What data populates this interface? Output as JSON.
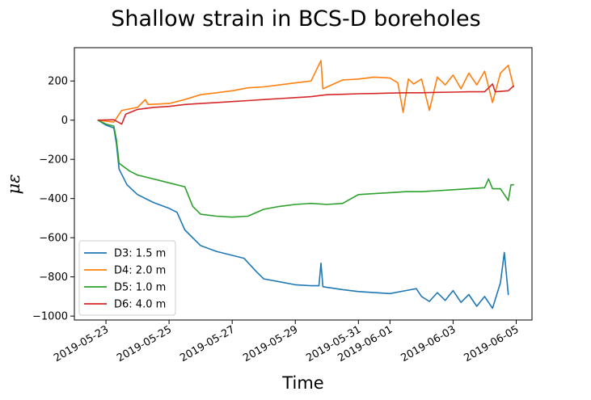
{
  "chart_data": {
    "type": "line",
    "title": "Shallow strain in BCS-D boreholes",
    "xlabel": "Time",
    "ylabel": "με",
    "x_range": [
      "2019-05-22",
      "2019-06-05 12:00"
    ],
    "ylim": [
      -1020,
      370
    ],
    "yticks": [
      200,
      0,
      -200,
      -400,
      -600,
      -800,
      -1000
    ],
    "ytick_labels": [
      "200",
      "0",
      "−200",
      "−400",
      "−600",
      "−800",
      "−1000"
    ],
    "xticks": [
      "2019-05-23",
      "2019-05-25",
      "2019-05-27",
      "2019-05-29",
      "2019-05-31",
      "2019-06-01",
      "2019-06-03",
      "2019-06-05"
    ],
    "grid": false,
    "legend_position": "lower-left",
    "series": [
      {
        "name": "D3: 1.5 m",
        "color": "#1f77b4",
        "points": [
          [
            "2019-05-22 18:00",
            0
          ],
          [
            "2019-05-23 00:00",
            -25
          ],
          [
            "2019-05-23 06:00",
            -40
          ],
          [
            "2019-05-23 08:00",
            -120
          ],
          [
            "2019-05-23 10:00",
            -250
          ],
          [
            "2019-05-23 16:00",
            -330
          ],
          [
            "2019-05-24 00:00",
            -380
          ],
          [
            "2019-05-24 12:00",
            -420
          ],
          [
            "2019-05-25 00:00",
            -450
          ],
          [
            "2019-05-25 06:00",
            -470
          ],
          [
            "2019-05-25 12:00",
            -560
          ],
          [
            "2019-05-26 00:00",
            -640
          ],
          [
            "2019-05-26 12:00",
            -670
          ],
          [
            "2019-05-27 00:00",
            -690
          ],
          [
            "2019-05-27 09:00",
            -705
          ],
          [
            "2019-05-27 18:00",
            -770
          ],
          [
            "2019-05-28 00:00",
            -810
          ],
          [
            "2019-05-28 12:00",
            -825
          ],
          [
            "2019-05-29 00:00",
            -840
          ],
          [
            "2019-05-29 12:00",
            -845
          ],
          [
            "2019-05-29 18:00",
            -845
          ],
          [
            "2019-05-29 19:30",
            -730
          ],
          [
            "2019-05-29 21:00",
            -850
          ],
          [
            "2019-05-30 12:00",
            -865
          ],
          [
            "2019-05-31 00:00",
            -875
          ],
          [
            "2019-05-31 12:00",
            -880
          ],
          [
            "2019-06-01 00:00",
            -885
          ],
          [
            "2019-06-01 12:00",
            -870
          ],
          [
            "2019-06-01 20:00",
            -860
          ],
          [
            "2019-06-02 00:00",
            -900
          ],
          [
            "2019-06-02 06:00",
            -925
          ],
          [
            "2019-06-02 12:00",
            -880
          ],
          [
            "2019-06-02 18:00",
            -920
          ],
          [
            "2019-06-03 00:00",
            -870
          ],
          [
            "2019-06-03 06:00",
            -930
          ],
          [
            "2019-06-03 12:00",
            -890
          ],
          [
            "2019-06-03 18:00",
            -950
          ],
          [
            "2019-06-04 00:00",
            -900
          ],
          [
            "2019-06-04 06:00",
            -960
          ],
          [
            "2019-06-04 12:00",
            -830
          ],
          [
            "2019-06-04 15:00",
            -675
          ],
          [
            "2019-06-04 18:00",
            -890
          ]
        ]
      },
      {
        "name": "D4: 2.0 m",
        "color": "#ff7f0e",
        "points": [
          [
            "2019-05-22 18:00",
            0
          ],
          [
            "2019-05-23 00:00",
            -5
          ],
          [
            "2019-05-23 06:00",
            -10
          ],
          [
            "2019-05-23 12:00",
            50
          ],
          [
            "2019-05-24 00:00",
            65
          ],
          [
            "2019-05-24 06:00",
            105
          ],
          [
            "2019-05-24 08:00",
            80
          ],
          [
            "2019-05-25 00:00",
            85
          ],
          [
            "2019-05-25 12:00",
            105
          ],
          [
            "2019-05-26 00:00",
            130
          ],
          [
            "2019-05-26 12:00",
            140
          ],
          [
            "2019-05-27 00:00",
            150
          ],
          [
            "2019-05-27 12:00",
            165
          ],
          [
            "2019-05-28 00:00",
            170
          ],
          [
            "2019-05-28 12:00",
            180
          ],
          [
            "2019-05-29 00:00",
            190
          ],
          [
            "2019-05-29 12:00",
            200
          ],
          [
            "2019-05-29 19:30",
            305
          ],
          [
            "2019-05-29 21:00",
            160
          ],
          [
            "2019-05-30 12:00",
            205
          ],
          [
            "2019-05-31 00:00",
            210
          ],
          [
            "2019-05-31 12:00",
            220
          ],
          [
            "2019-06-01 00:00",
            215
          ],
          [
            "2019-06-01 06:00",
            190
          ],
          [
            "2019-06-01 10:00",
            40
          ],
          [
            "2019-06-01 14:00",
            210
          ],
          [
            "2019-06-01 18:00",
            185
          ],
          [
            "2019-06-02 00:00",
            210
          ],
          [
            "2019-06-02 06:00",
            50
          ],
          [
            "2019-06-02 12:00",
            220
          ],
          [
            "2019-06-02 18:00",
            180
          ],
          [
            "2019-06-03 00:00",
            230
          ],
          [
            "2019-06-03 06:00",
            160
          ],
          [
            "2019-06-03 12:00",
            240
          ],
          [
            "2019-06-03 18:00",
            180
          ],
          [
            "2019-06-04 00:00",
            250
          ],
          [
            "2019-06-04 06:00",
            90
          ],
          [
            "2019-06-04 12:00",
            240
          ],
          [
            "2019-06-04 18:00",
            280
          ],
          [
            "2019-06-04 22:00",
            170
          ]
        ]
      },
      {
        "name": "D5: 1.0 m",
        "color": "#2ca02c",
        "points": [
          [
            "2019-05-22 18:00",
            0
          ],
          [
            "2019-05-23 00:00",
            -20
          ],
          [
            "2019-05-23 06:00",
            -30
          ],
          [
            "2019-05-23 08:00",
            -100
          ],
          [
            "2019-05-23 10:00",
            -220
          ],
          [
            "2019-05-23 18:00",
            -260
          ],
          [
            "2019-05-24 00:00",
            -280
          ],
          [
            "2019-05-24 12:00",
            -300
          ],
          [
            "2019-05-25 00:00",
            -320
          ],
          [
            "2019-05-25 12:00",
            -340
          ],
          [
            "2019-05-25 18:00",
            -440
          ],
          [
            "2019-05-26 00:00",
            -480
          ],
          [
            "2019-05-26 12:00",
            -490
          ],
          [
            "2019-05-27 00:00",
            -495
          ],
          [
            "2019-05-27 12:00",
            -490
          ],
          [
            "2019-05-28 00:00",
            -455
          ],
          [
            "2019-05-28 12:00",
            -440
          ],
          [
            "2019-05-29 00:00",
            -430
          ],
          [
            "2019-05-29 12:00",
            -425
          ],
          [
            "2019-05-30 00:00",
            -430
          ],
          [
            "2019-05-30 12:00",
            -425
          ],
          [
            "2019-05-31 00:00",
            -380
          ],
          [
            "2019-05-31 12:00",
            -375
          ],
          [
            "2019-06-01 00:00",
            -370
          ],
          [
            "2019-06-01 12:00",
            -365
          ],
          [
            "2019-06-02 00:00",
            -365
          ],
          [
            "2019-06-02 12:00",
            -360
          ],
          [
            "2019-06-03 00:00",
            -355
          ],
          [
            "2019-06-03 12:00",
            -350
          ],
          [
            "2019-06-04 00:00",
            -345
          ],
          [
            "2019-06-04 03:00",
            -300
          ],
          [
            "2019-06-04 06:00",
            -350
          ],
          [
            "2019-06-04 12:00",
            -350
          ],
          [
            "2019-06-04 18:00",
            -410
          ],
          [
            "2019-06-04 20:00",
            -330
          ],
          [
            "2019-06-04 22:00",
            -330
          ]
        ]
      },
      {
        "name": "D6: 4.0 m",
        "color": "#d62728",
        "points": [
          [
            "2019-05-22 18:00",
            0
          ],
          [
            "2019-05-23 06:00",
            2
          ],
          [
            "2019-05-23 12:00",
            -20
          ],
          [
            "2019-05-23 15:00",
            30
          ],
          [
            "2019-05-24 00:00",
            55
          ],
          [
            "2019-05-24 12:00",
            65
          ],
          [
            "2019-05-25 00:00",
            70
          ],
          [
            "2019-05-25 12:00",
            80
          ],
          [
            "2019-05-26 00:00",
            85
          ],
          [
            "2019-05-26 12:00",
            90
          ],
          [
            "2019-05-27 00:00",
            95
          ],
          [
            "2019-05-27 12:00",
            100
          ],
          [
            "2019-05-28 00:00",
            105
          ],
          [
            "2019-05-28 12:00",
            110
          ],
          [
            "2019-05-29 00:00",
            115
          ],
          [
            "2019-05-29 12:00",
            120
          ],
          [
            "2019-05-30 00:00",
            130
          ],
          [
            "2019-05-30 12:00",
            132
          ],
          [
            "2019-05-31 00:00",
            135
          ],
          [
            "2019-05-31 12:00",
            136
          ],
          [
            "2019-06-01 00:00",
            138
          ],
          [
            "2019-06-01 12:00",
            140
          ],
          [
            "2019-06-02 00:00",
            140
          ],
          [
            "2019-06-02 12:00",
            142
          ],
          [
            "2019-06-03 00:00",
            143
          ],
          [
            "2019-06-03 12:00",
            145
          ],
          [
            "2019-06-04 00:00",
            145
          ],
          [
            "2019-06-04 06:00",
            185
          ],
          [
            "2019-06-04 08:00",
            145
          ],
          [
            "2019-06-04 18:00",
            150
          ],
          [
            "2019-06-04 22:00",
            175
          ]
        ]
      }
    ]
  }
}
